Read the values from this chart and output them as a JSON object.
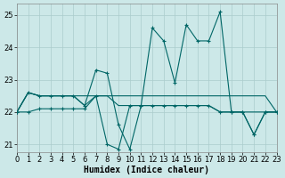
{
  "xlabel": "Humidex (Indice chaleur)",
  "background_color": "#cce8e8",
  "grid_color": "#aacccc",
  "line_color": "#006666",
  "xlim": [
    0,
    23
  ],
  "ylim": [
    20.75,
    25.35
  ],
  "yticks": [
    21,
    22,
    23,
    24,
    25
  ],
  "xticks": [
    0,
    1,
    2,
    3,
    4,
    5,
    6,
    7,
    8,
    9,
    10,
    11,
    12,
    13,
    14,
    15,
    16,
    17,
    18,
    19,
    20,
    21,
    22,
    23
  ],
  "series": {
    "s1": [
      22.0,
      22.6,
      22.5,
      22.5,
      22.5,
      22.5,
      22.2,
      23.3,
      23.2,
      21.6,
      20.85,
      22.2,
      24.6,
      24.2,
      22.9,
      24.7,
      24.2,
      24.2,
      25.1,
      22.0,
      22.0,
      21.3,
      22.0,
      22.0
    ],
    "s2": [
      22.0,
      22.6,
      22.5,
      22.5,
      22.5,
      22.5,
      22.5,
      22.5,
      22.5,
      22.5,
      22.5,
      22.5,
      22.5,
      22.5,
      22.5,
      22.5,
      22.5,
      22.5,
      22.5,
      22.5,
      22.5,
      22.5,
      22.5,
      22.0
    ],
    "s3": [
      22.0,
      22.6,
      22.5,
      22.5,
      22.5,
      22.5,
      22.2,
      22.5,
      22.5,
      22.2,
      22.2,
      22.2,
      22.2,
      22.2,
      22.2,
      22.2,
      22.2,
      22.2,
      22.0,
      22.0,
      22.0,
      22.0,
      22.0,
      22.0
    ],
    "s4": [
      22.0,
      22.0,
      22.1,
      22.1,
      22.1,
      22.1,
      22.1,
      22.5,
      21.0,
      20.85,
      22.2,
      22.2,
      22.2,
      22.2,
      22.2,
      22.2,
      22.2,
      22.2,
      22.0,
      22.0,
      22.0,
      21.3,
      22.0,
      22.0
    ]
  }
}
